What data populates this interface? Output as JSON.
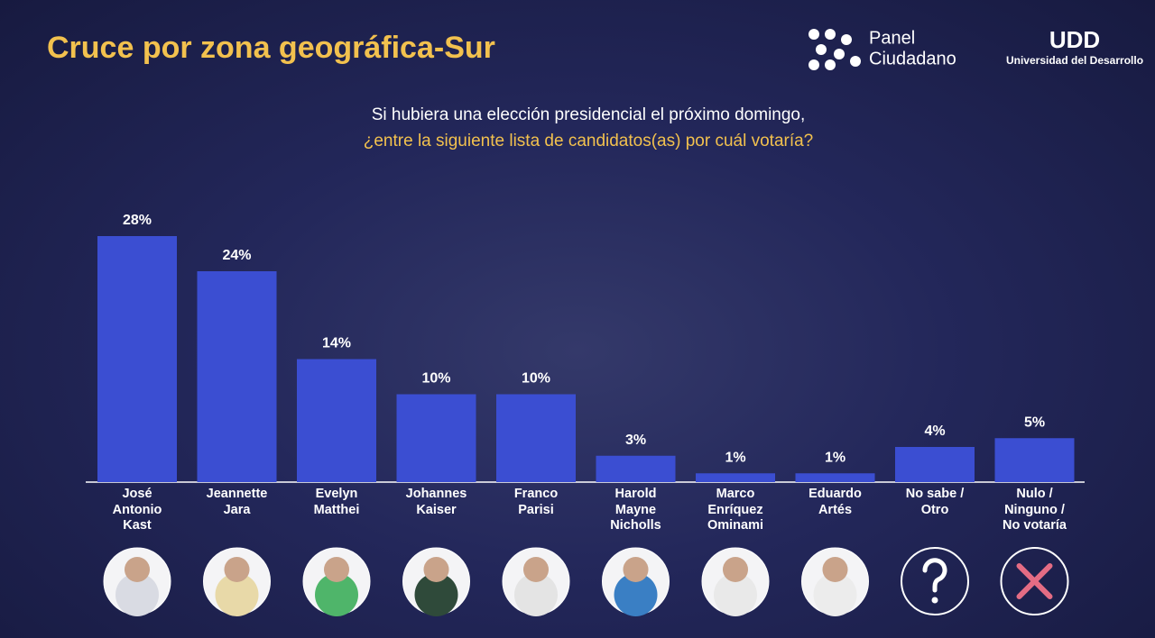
{
  "chart_data": {
    "type": "bar",
    "title": "Cruce por zona geográfica-Sur",
    "subtitle": [
      "Si hubiera una elección presidencial el próximo domingo,",
      "¿entre la siguiente lista de candidatos(as) por cuál votaría?"
    ],
    "categories": [
      "José\nAntonio\nKast",
      "Jeannette\nJara",
      "Evelyn\nMatthei",
      "Johannes\nKaiser",
      "Franco\nParisi",
      "Harold\nMayne\nNicholls",
      "Marco\nEnríquez\nOminami",
      "Eduardo\nArtés",
      "No sabe /\nOtro",
      "Nulo /\nNinguno /\nNo votaría"
    ],
    "values": [
      28,
      24,
      14,
      10,
      10,
      3,
      1,
      1,
      4,
      5
    ],
    "value_labels": [
      "28%",
      "24%",
      "14%",
      "10%",
      "10%",
      "3%",
      "1%",
      "1%",
      "4%",
      "5%"
    ],
    "color": "#3b4ed2"
  },
  "branding": {
    "panel_line1": "Panel",
    "panel_line2": "Ciudadano",
    "udd": "UDD",
    "university": "Universidad del Desarrollo"
  }
}
